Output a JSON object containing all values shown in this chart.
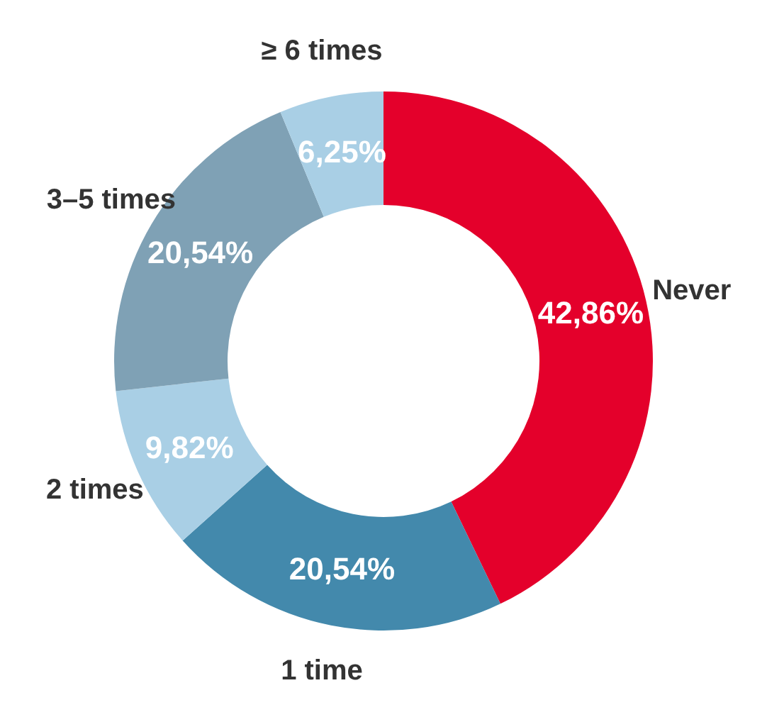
{
  "chart_data": {
    "type": "donut",
    "categories": [
      "Never",
      "1 time",
      "2 times",
      "3–5 times",
      "≥ 6 times"
    ],
    "values": [
      42.86,
      20.54,
      9.82,
      20.54,
      6.25
    ],
    "value_labels": [
      "42,86%",
      "20,54%",
      "9,82%",
      "20,54%",
      "6,25%"
    ],
    "colors": [
      "#e4002b",
      "#4389ac",
      "#a9cfe5",
      "#7fa1b5",
      "#a9cfe5"
    ]
  }
}
